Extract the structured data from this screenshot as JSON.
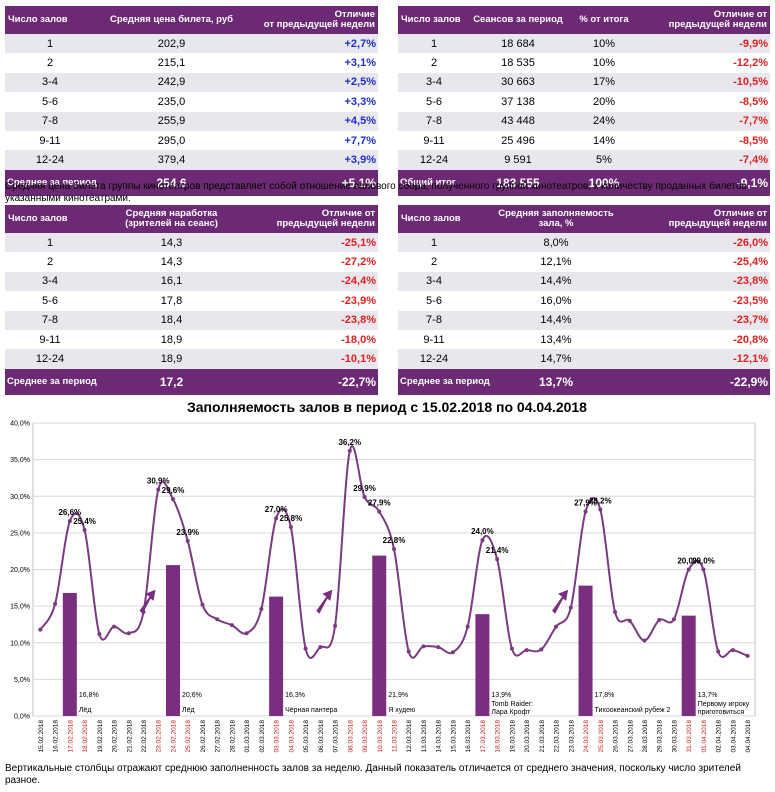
{
  "table1": {
    "headers": [
      "Число залов",
      "Средняя цена билета, руб",
      "Отличие\nот предыдущей недели"
    ],
    "rows": [
      {
        "halls": "1",
        "value": "202,9",
        "diff": "+2,7%"
      },
      {
        "halls": "2",
        "value": "215,1",
        "diff": "+3,1%"
      },
      {
        "halls": "3-4",
        "value": "242,9",
        "diff": "+2,5%"
      },
      {
        "halls": "5-6",
        "value": "235,0",
        "diff": "+3,3%"
      },
      {
        "halls": "7-8",
        "value": "255,9",
        "diff": "+4,5%"
      },
      {
        "halls": "9-11",
        "value": "295,0",
        "diff": "+7,7%"
      },
      {
        "halls": "12-24",
        "value": "379,4",
        "diff": "+3,9%"
      }
    ],
    "total": {
      "label": "Среднее за период",
      "value": "254,6",
      "diff": "+5,1%"
    }
  },
  "table2": {
    "headers": [
      "Число залов",
      "Сеансов за период",
      "% от итога",
      "Отличие от\nпредыдущей недели"
    ],
    "rows": [
      {
        "halls": "1",
        "value": "18 684",
        "pct": "10%",
        "diff": "-9,9%"
      },
      {
        "halls": "2",
        "value": "18 535",
        "pct": "10%",
        "diff": "-12,2%"
      },
      {
        "halls": "3-4",
        "value": "30 663",
        "pct": "17%",
        "diff": "-10,5%"
      },
      {
        "halls": "5-6",
        "value": "37 138",
        "pct": "20%",
        "diff": "-8,5%"
      },
      {
        "halls": "7-8",
        "value": "43 448",
        "pct": "24%",
        "diff": "-7,7%"
      },
      {
        "halls": "9-11",
        "value": "25 496",
        "pct": "14%",
        "diff": "-8,5%"
      },
      {
        "halls": "12-24",
        "value": "9 591",
        "pct": "5%",
        "diff": "-7,4%"
      }
    ],
    "total": {
      "label": "Общий итог",
      "value": "183 555",
      "pct": "100%",
      "diff": "-9,1%"
    }
  },
  "note1": "Средняя цена билета группы кинотеатров представляет собой отношение валового сбора, полученного группой кинотеатров, к количеству проданных билетов указанными кинотеатрами.",
  "table3": {
    "headers": [
      "Число залов",
      "Средняя наработка\n(зрителей на сеанс)",
      "Отличие от\nпредыдущей недели"
    ],
    "rows": [
      {
        "halls": "1",
        "value": "14,3",
        "diff": "-25,1%"
      },
      {
        "halls": "2",
        "value": "14,3",
        "diff": "-27,2%"
      },
      {
        "halls": "3-4",
        "value": "16,1",
        "diff": "-24,4%"
      },
      {
        "halls": "5-6",
        "value": "17,8",
        "diff": "-23,9%"
      },
      {
        "halls": "7-8",
        "value": "18,4",
        "diff": "-23,8%"
      },
      {
        "halls": "9-11",
        "value": "18,9",
        "diff": "-18,0%"
      },
      {
        "halls": "12-24",
        "value": "18,9",
        "diff": "-10,1%"
      }
    ],
    "total": {
      "label": "Среднее за период",
      "value": "17,2",
      "diff": "-22,7%"
    }
  },
  "table4": {
    "headers": [
      "Число залов",
      "Средняя заполняемость\nзала, %",
      "Отличие от\nпредыдущей недели"
    ],
    "rows": [
      {
        "halls": "1",
        "value": "8,0%",
        "diff": "-26,0%"
      },
      {
        "halls": "2",
        "value": "12,1%",
        "diff": "-25,4%"
      },
      {
        "halls": "3-4",
        "value": "14,4%",
        "diff": "-23,8%"
      },
      {
        "halls": "5-6",
        "value": "16,0%",
        "diff": "-23,5%"
      },
      {
        "halls": "7-8",
        "value": "14,4%",
        "diff": "-23,7%"
      },
      {
        "halls": "9-11",
        "value": "13,4%",
        "diff": "-20,8%"
      },
      {
        "halls": "12-24",
        "value": "14,7%",
        "diff": "-12,1%"
      }
    ],
    "total": {
      "label": "Среднее за период",
      "value": "13,7%",
      "diff": "-22,9%"
    }
  },
  "note2": "Вертикальные столбцы отражают среднюю заполненность залов за неделю. Данный показатель отличается от среднего значения, поскольку число зрителей разное.",
  "colors": {
    "purple": "#6b2a73",
    "line": "#7a3a82",
    "bar": "#7b2d80",
    "pos": "#1f2fc8",
    "neg": "#e0201f",
    "date_red": "#c81e1e"
  },
  "chart_data": {
    "type": "line",
    "title": "Заполняемость залов в период с 15.02.2018 по 04.04.2018",
    "ylim": [
      0,
      40
    ],
    "y_ticks": [
      "0,0%",
      "5,0%",
      "10,0%",
      "15,0%",
      "20,0%",
      "25,0%",
      "30,0%",
      "35,0%",
      "40,0%"
    ],
    "x": [
      "15.02.2018",
      "16.02.2018",
      "17.02.2018",
      "18.02.2018",
      "19.02.2018",
      "20.02.2018",
      "21.02.2018",
      "22.02.2018",
      "23.02.2018",
      "24.02.2018",
      "25.02.2018",
      "26.02.2018",
      "27.02.2018",
      "28.02.2018",
      "01.03.2018",
      "02.03.2018",
      "03.03.2018",
      "04.03.2018",
      "05.03.2018",
      "06.03.2018",
      "07.03.2018",
      "08.03.2018",
      "09.03.2018",
      "10.03.2018",
      "11.03.2018",
      "12.03.2018",
      "13.03.2018",
      "14.03.2018",
      "15.03.2018",
      "16.03.2018",
      "17.03.2018",
      "18.03.2018",
      "19.03.2018",
      "20.03.2018",
      "21.03.2018",
      "22.03.2018",
      "23.03.2018",
      "24.03.2018",
      "25.03.2018",
      "26.03.2018",
      "27.03.2018",
      "28.03.2018",
      "29.03.2018",
      "30.03.2018",
      "31.03.2018",
      "01.04.2018",
      "02.04.2018",
      "03.04.2018",
      "04.04.2018"
    ],
    "red_dates": [
      "17.02.2018",
      "18.02.2018",
      "23.02.2018",
      "24.02.2018",
      "25.02.2018",
      "03.03.2018",
      "04.03.2018",
      "08.03.2018",
      "09.03.2018",
      "10.03.2018",
      "11.03.2018",
      "17.03.2018",
      "18.03.2018",
      "24.03.2018",
      "25.03.2018",
      "31.03.2018",
      "01.04.2018"
    ],
    "values": [
      11.8,
      15.3,
      26.6,
      25.4,
      11.2,
      12.2,
      11.3,
      14.2,
      30.9,
      29.6,
      23.9,
      15.2,
      13.2,
      12.4,
      11.3,
      14.6,
      27.0,
      25.8,
      9.2,
      9.4,
      12.3,
      36.2,
      29.9,
      27.9,
      22.8,
      8.8,
      9.5,
      9.4,
      8.7,
      12.2,
      24.0,
      21.4,
      9.2,
      9.0,
      9.1,
      12.2,
      14.8,
      27.9,
      28.2,
      14.2,
      13.0,
      10.3,
      13.1,
      13.2,
      20.0,
      20.0,
      8.8,
      9.0,
      8.2
    ],
    "point_labels": [
      {
        "index": 2,
        "text": "26,6%"
      },
      {
        "index": 3,
        "text": "25,4%"
      },
      {
        "index": 8,
        "text": "30,9%"
      },
      {
        "index": 9,
        "text": "29,6%"
      },
      {
        "index": 10,
        "text": "23,9%"
      },
      {
        "index": 16,
        "text": "27,0%"
      },
      {
        "index": 17,
        "text": "25,8%"
      },
      {
        "index": 21,
        "text": "36,2%"
      },
      {
        "index": 22,
        "text": "29,9%"
      },
      {
        "index": 23,
        "text": "27,9%"
      },
      {
        "index": 24,
        "text": "22,8%"
      },
      {
        "index": 30,
        "text": "24,0%"
      },
      {
        "index": 31,
        "text": "21,4%"
      },
      {
        "index": 37,
        "text": "27,9%"
      },
      {
        "index": 38,
        "text": "28,2%"
      },
      {
        "index": 44,
        "text": "20,0%"
      },
      {
        "index": 45,
        "text": "20,0%"
      }
    ],
    "bars": [
      {
        "index": 2,
        "value": 16.8,
        "label": "16,8%",
        "film": "Лёд"
      },
      {
        "index": 9,
        "value": 20.6,
        "label": "20,6%",
        "film": "Лёд"
      },
      {
        "index": 16,
        "value": 16.3,
        "label": "16,3%",
        "film": "Чёрная пантера"
      },
      {
        "index": 23,
        "value": 21.9,
        "label": "21,9%",
        "film": "Я худею"
      },
      {
        "index": 30,
        "value": 13.9,
        "label": "13,9%",
        "film": "Tomb Raider: Лара Крофт"
      },
      {
        "index": 37,
        "value": 17.8,
        "label": "17,8%",
        "film": "Тихоокеанский рубеж 2"
      },
      {
        "index": 44,
        "value": 13.7,
        "label": "13,7%",
        "film": "Первому игроку приготовиться"
      }
    ],
    "arrows_at": [
      7,
      19,
      35
    ],
    "grid": true
  }
}
